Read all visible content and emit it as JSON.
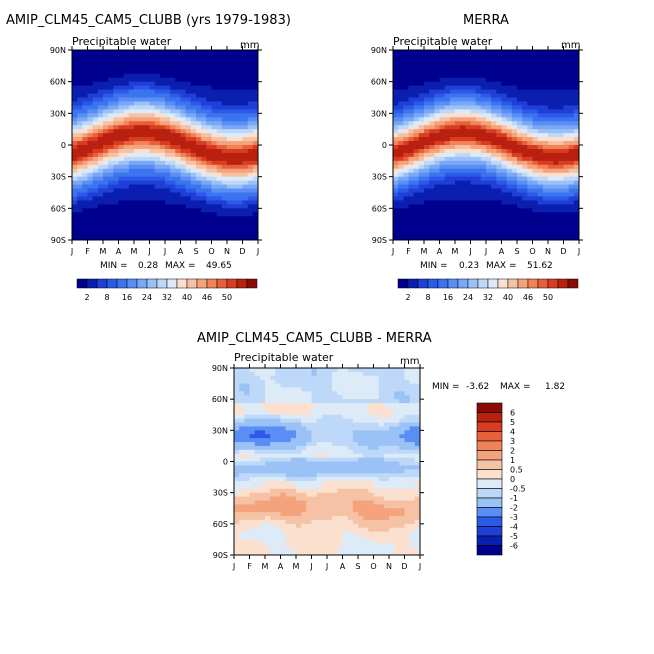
{
  "panels": [
    {
      "title": "AMIP_CLM45_CAM5_CLUBB (yrs 1979-1983)",
      "subtitle": "Precipitable water",
      "units": "mm",
      "min_label": "MIN =",
      "min_value": "0.28",
      "max_label": "MAX =",
      "max_value": "49.65"
    },
    {
      "title": "MERRA",
      "subtitle": "Precipitable water",
      "units": "mm",
      "min_label": "MIN =",
      "min_value": "0.23",
      "max_label": "MAX =",
      "max_value": "51.62"
    },
    {
      "title": "AMIP_CLM45_CAM5_CLUBB - MERRA",
      "subtitle": "Precipitable water",
      "units": "mm",
      "min_label": "MIN =",
      "min_value": "-3.62",
      "max_label": "MAX =",
      "max_value": "1.82"
    }
  ],
  "chart_data": [
    {
      "type": "heatmap",
      "title": "AMIP_CLM45_CAM5_CLUBB (yrs 1979-1983)",
      "subtitle": "Precipitable water",
      "units": "mm",
      "x_ticks": [
        "J",
        "F",
        "M",
        "A",
        "M",
        "J",
        "J",
        "A",
        "S",
        "O",
        "N",
        "D",
        "J"
      ],
      "y_ticks": [
        "90N",
        "60N",
        "30N",
        "0",
        "30S",
        "60S",
        "90S"
      ],
      "ylim": [
        -90,
        90
      ],
      "min": 0.28,
      "max": 49.65,
      "legend_levels": [
        2,
        4,
        6,
        8,
        12,
        16,
        20,
        24,
        28,
        32,
        36,
        40,
        44,
        46,
        48,
        50
      ],
      "legend_labels": [
        "2",
        "8",
        "16",
        "24",
        "32",
        "40",
        "46",
        "50"
      ],
      "colors": [
        "#00008f",
        "#0a1fb0",
        "#1f3fd6",
        "#2c5ae8",
        "#3c74f0",
        "#5a8ef4",
        "#7aa8f6",
        "#9bc2f7",
        "#bdd8f8",
        "#ddebf8",
        "#fbe0d0",
        "#f6c2a5",
        "#f4a37d",
        "#f08458",
        "#e8603a",
        "#d83c21",
        "#b9200f",
        "#8c0a06"
      ]
    },
    {
      "type": "heatmap",
      "title": "MERRA",
      "subtitle": "Precipitable water",
      "units": "mm",
      "x_ticks": [
        "J",
        "F",
        "M",
        "A",
        "M",
        "J",
        "J",
        "A",
        "S",
        "O",
        "N",
        "D",
        "J"
      ],
      "y_ticks": [
        "90N",
        "60N",
        "30N",
        "0",
        "30S",
        "60S",
        "90S"
      ],
      "ylim": [
        -90,
        90
      ],
      "min": 0.23,
      "max": 51.62,
      "legend_levels": [
        2,
        4,
        6,
        8,
        12,
        16,
        20,
        24,
        28,
        32,
        36,
        40,
        44,
        46,
        48,
        50
      ],
      "legend_labels": [
        "2",
        "8",
        "16",
        "24",
        "32",
        "40",
        "46",
        "50"
      ],
      "colors": [
        "#00008f",
        "#0a1fb0",
        "#1f3fd6",
        "#2c5ae8",
        "#3c74f0",
        "#5a8ef4",
        "#7aa8f6",
        "#9bc2f7",
        "#bdd8f8",
        "#ddebf8",
        "#fbe0d0",
        "#f6c2a5",
        "#f4a37d",
        "#f08458",
        "#e8603a",
        "#d83c21",
        "#b9200f",
        "#8c0a06"
      ]
    },
    {
      "type": "heatmap",
      "title": "AMIP_CLM45_CAM5_CLUBB - MERRA",
      "subtitle": "Precipitable water",
      "units": "mm",
      "x_ticks": [
        "J",
        "F",
        "M",
        "A",
        "M",
        "J",
        "J",
        "A",
        "S",
        "O",
        "N",
        "D",
        "J"
      ],
      "y_ticks": [
        "90N",
        "60N",
        "30N",
        "0",
        "30S",
        "60S",
        "90S"
      ],
      "ylim": [
        -90,
        90
      ],
      "min": -3.62,
      "max": 1.82,
      "legend_labels": [
        "6",
        "5",
        "4",
        "3",
        "2",
        "1",
        "0.5",
        "0",
        "-0.5",
        "-1",
        "-2",
        "-3",
        "-4",
        "-5",
        "-6"
      ],
      "colors": [
        "#8c0a06",
        "#b9200f",
        "#d83c21",
        "#e8603a",
        "#f08458",
        "#f4a37d",
        "#f6c2a5",
        "#fbe0d0",
        "#ddebf8",
        "#bdd8f8",
        "#9bc2f7",
        "#5a8ef4",
        "#2c5ae8",
        "#1f3fd6",
        "#0a1fb0",
        "#00008f"
      ]
    }
  ]
}
